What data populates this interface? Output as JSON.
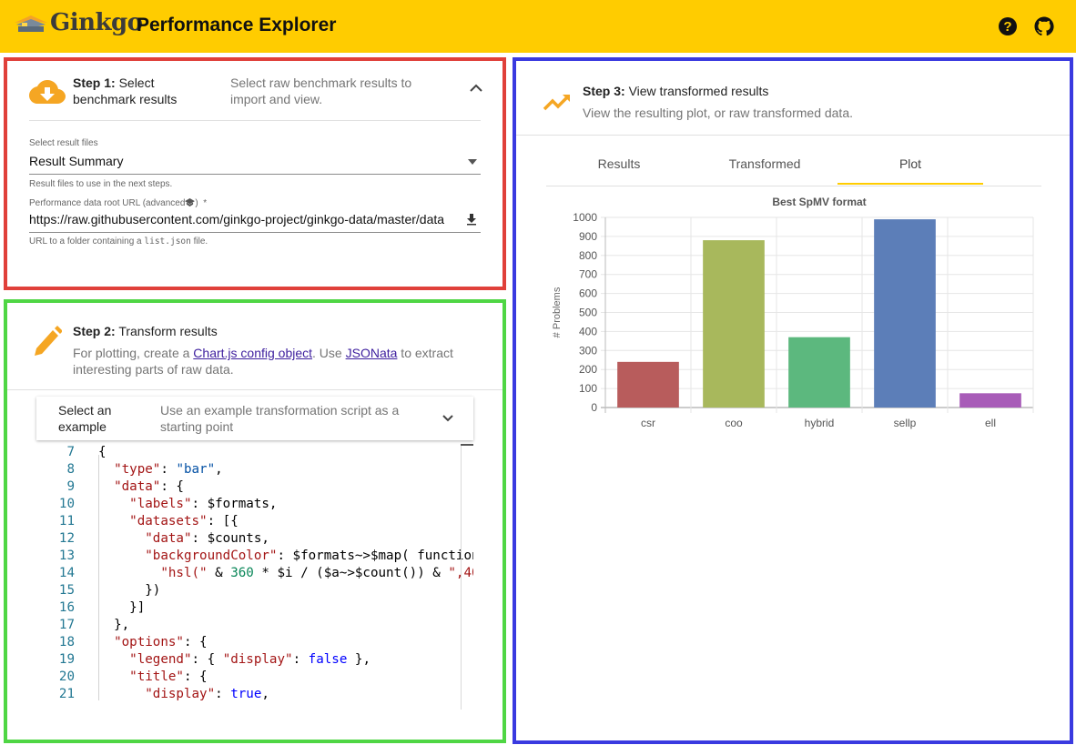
{
  "header": {
    "brand": "Ginkgo",
    "title": "Performance Explorer",
    "help_icon": "help-circle-icon",
    "github_icon": "github-icon"
  },
  "step1": {
    "label": "Step 1:",
    "title": " Select benchmark results",
    "description": "Select raw benchmark results to import and view.",
    "icon": "cloud-download-icon",
    "result_files": {
      "label": "Select result files",
      "value": "Result Summary",
      "help": "Result files to use in the next steps."
    },
    "root_url": {
      "label": "Performance data root URL (advanced",
      "required_mark": "*",
      "value": "https://raw.githubusercontent.com/ginkgo-project/ginkgo-data/master/data",
      "help_prefix": "URL to a folder containing a ",
      "help_code": "list.json",
      "help_suffix": " file."
    }
  },
  "step2": {
    "label": "Step 2:",
    "title": " Transform results",
    "desc_prefix": "For plotting, create a ",
    "link1": "Chart.js config object",
    "desc_mid": ". Use ",
    "link2": "JSONata",
    "desc_suffix": " to extract interesting parts of raw data.",
    "icon": "pencil-icon",
    "example": {
      "title": "Select an example",
      "description": "Use an example transformation script as a starting point"
    },
    "line_numbers": [
      "7",
      "8",
      "9",
      "10",
      "11",
      "12",
      "13",
      "14",
      "15",
      "16",
      "17",
      "18",
      "19",
      "20",
      "21"
    ]
  },
  "step3": {
    "label": "Step 3:",
    "title": " View transformed results",
    "description": "View the resulting plot, or raw transformed data.",
    "icon": "trending-up-icon",
    "tabs": [
      "Results",
      "Transformed",
      "Plot"
    ],
    "active_tab": "Plot"
  },
  "chart_data": {
    "type": "bar",
    "title": "Best SpMV format",
    "xlabel": "",
    "ylabel": "# Problems",
    "categories": [
      "csr",
      "coo",
      "hybrid",
      "sellp",
      "ell"
    ],
    "values": [
      240,
      880,
      370,
      990,
      75
    ],
    "ylim": [
      0,
      1000
    ],
    "yticks": [
      0,
      100,
      200,
      300,
      400,
      500,
      600,
      700,
      800,
      900,
      1000
    ],
    "colors": [
      "#b85c5c",
      "#a8b85c",
      "#5cb87e",
      "#5c7eb8",
      "#a85cb8"
    ],
    "legend": false,
    "grid": true
  },
  "colors": {
    "topbar": "#ffcc00",
    "step1_border": "#e0403a",
    "step2_border": "#4fd644",
    "step3_border": "#3a3ae0",
    "icon_orange": "#f5a623"
  }
}
